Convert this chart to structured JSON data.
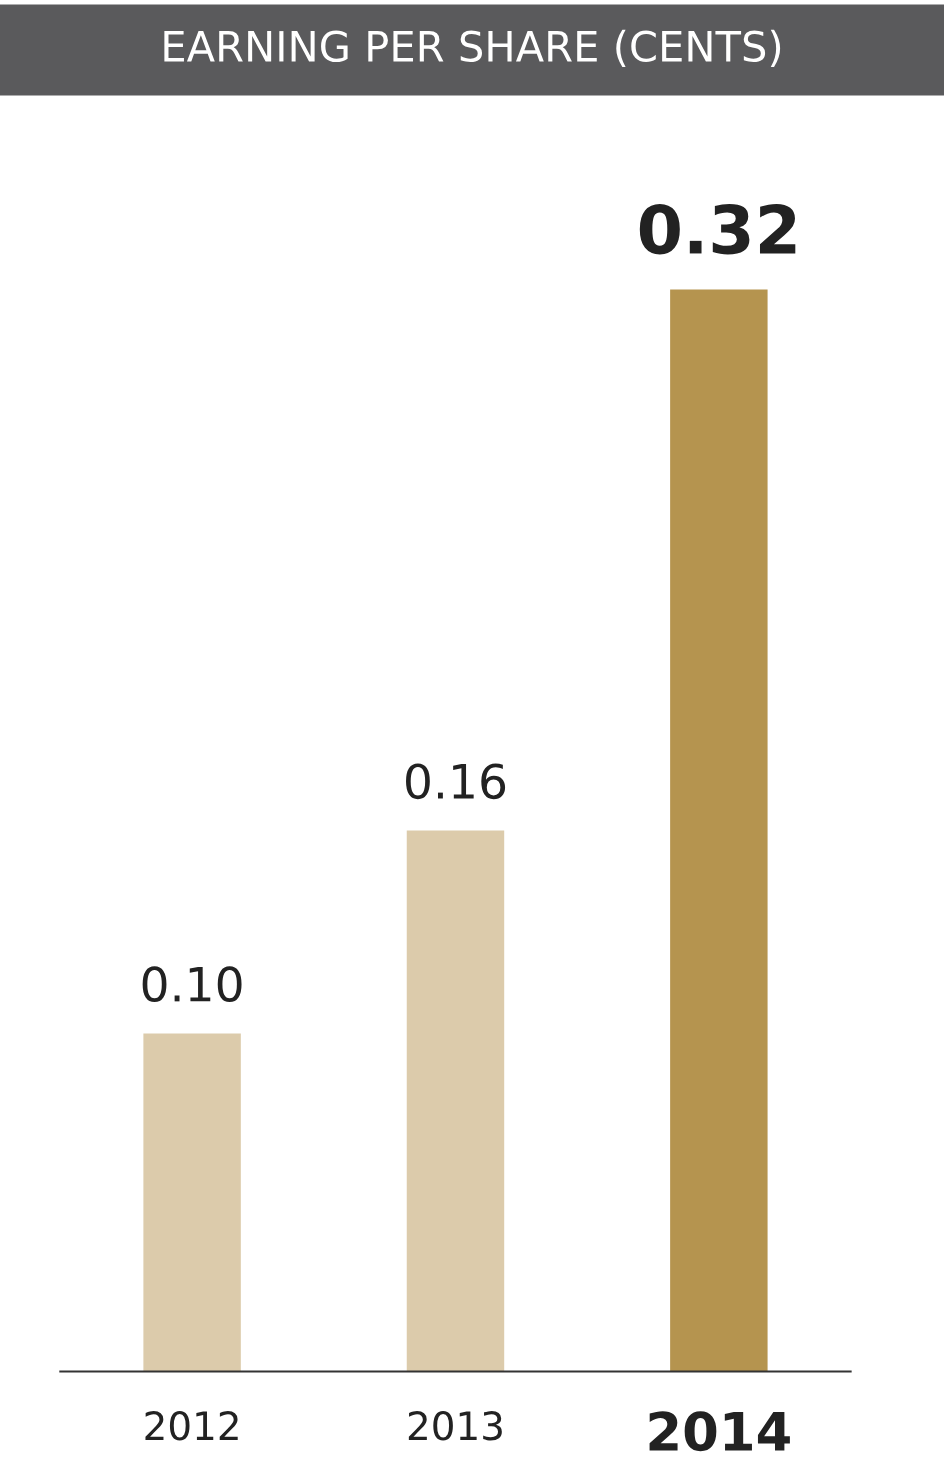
{
  "chart_data": {
    "type": "bar",
    "title": "EARNING PER SHARE (CENTS)",
    "categories": [
      "2012",
      "2013",
      "2014"
    ],
    "values": [
      0.1,
      0.16,
      0.32
    ],
    "colors": [
      "#dccbab",
      "#dccbab",
      "#b5944f"
    ],
    "value_labels": [
      "0.10",
      "0.16",
      "0.32"
    ],
    "grid": false,
    "legend": false
  }
}
